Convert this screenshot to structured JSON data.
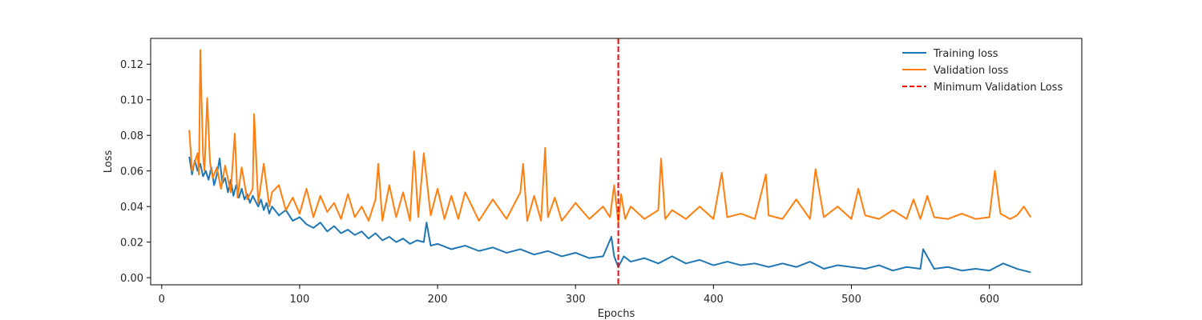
{
  "chart_data": {
    "type": "line",
    "title": "",
    "xlabel": "Epochs",
    "ylabel": "Loss",
    "xlim": [
      -8,
      667
    ],
    "ylim": [
      -0.004,
      0.1345
    ],
    "xticks": [
      0,
      100,
      200,
      300,
      400,
      500,
      600
    ],
    "yticks": [
      0.0,
      0.02,
      0.04,
      0.06,
      0.08,
      0.1,
      0.12
    ],
    "ytick_labels": [
      "0.00",
      "0.02",
      "0.04",
      "0.06",
      "0.08",
      "0.10",
      "0.12"
    ],
    "grid": false,
    "legend_position": "top-right",
    "series": [
      {
        "name": "Training loss",
        "color": "#1f77b4",
        "x": [
          20,
          22,
          24,
          26,
          28,
          30,
          32,
          34,
          36,
          38,
          40,
          42,
          44,
          46,
          48,
          50,
          52,
          54,
          56,
          58,
          60,
          62,
          64,
          66,
          68,
          70,
          72,
          74,
          76,
          78,
          80,
          85,
          90,
          95,
          100,
          105,
          110,
          115,
          120,
          125,
          130,
          135,
          140,
          145,
          150,
          155,
          160,
          165,
          170,
          175,
          180,
          185,
          190,
          192,
          195,
          200,
          210,
          220,
          230,
          240,
          250,
          260,
          270,
          280,
          290,
          300,
          310,
          320,
          326,
          328,
          331,
          335,
          340,
          350,
          360,
          370,
          380,
          390,
          400,
          410,
          420,
          430,
          440,
          450,
          460,
          470,
          480,
          490,
          500,
          510,
          520,
          530,
          540,
          550,
          552,
          560,
          570,
          580,
          590,
          600,
          610,
          620,
          630
        ],
        "y": [
          0.068,
          0.058,
          0.066,
          0.06,
          0.064,
          0.057,
          0.06,
          0.055,
          0.062,
          0.052,
          0.058,
          0.067,
          0.053,
          0.056,
          0.048,
          0.055,
          0.046,
          0.052,
          0.045,
          0.05,
          0.044,
          0.047,
          0.042,
          0.046,
          0.043,
          0.04,
          0.044,
          0.038,
          0.042,
          0.036,
          0.04,
          0.035,
          0.038,
          0.032,
          0.034,
          0.03,
          0.028,
          0.031,
          0.026,
          0.029,
          0.025,
          0.027,
          0.024,
          0.026,
          0.022,
          0.025,
          0.021,
          0.023,
          0.02,
          0.022,
          0.019,
          0.021,
          0.02,
          0.031,
          0.018,
          0.019,
          0.016,
          0.018,
          0.015,
          0.017,
          0.014,
          0.016,
          0.013,
          0.015,
          0.012,
          0.014,
          0.011,
          0.012,
          0.023,
          0.012,
          0.006,
          0.012,
          0.009,
          0.011,
          0.008,
          0.012,
          0.008,
          0.01,
          0.007,
          0.009,
          0.007,
          0.008,
          0.006,
          0.008,
          0.006,
          0.009,
          0.005,
          0.007,
          0.006,
          0.005,
          0.007,
          0.004,
          0.006,
          0.005,
          0.016,
          0.005,
          0.006,
          0.004,
          0.005,
          0.004,
          0.008,
          0.005,
          0.003
        ]
      },
      {
        "name": "Validation loss",
        "color": "#ff7f0e",
        "x": [
          20,
          22,
          24,
          26,
          27,
          28,
          30,
          31,
          33,
          35,
          37,
          40,
          43,
          46,
          50,
          53,
          55,
          58,
          62,
          66,
          67,
          70,
          74,
          78,
          80,
          85,
          90,
          95,
          100,
          105,
          110,
          115,
          120,
          125,
          130,
          135,
          140,
          145,
          150,
          155,
          157,
          160,
          165,
          170,
          175,
          180,
          183,
          186,
          190,
          195,
          200,
          205,
          210,
          215,
          220,
          230,
          240,
          250,
          260,
          262,
          265,
          270,
          275,
          278,
          280,
          285,
          290,
          300,
          310,
          320,
          325,
          328,
          331,
          333,
          336,
          340,
          350,
          360,
          362,
          365,
          370,
          380,
          390,
          400,
          406,
          410,
          420,
          430,
          438,
          440,
          450,
          460,
          470,
          474,
          480,
          490,
          500,
          505,
          510,
          520,
          530,
          540,
          545,
          550,
          555,
          560,
          570,
          580,
          590,
          600,
          604,
          608,
          615,
          620,
          625,
          630
        ],
        "y": [
          0.083,
          0.06,
          0.065,
          0.07,
          0.058,
          0.128,
          0.068,
          0.06,
          0.101,
          0.065,
          0.056,
          0.062,
          0.05,
          0.063,
          0.048,
          0.081,
          0.045,
          0.062,
          0.044,
          0.05,
          0.092,
          0.042,
          0.064,
          0.04,
          0.048,
          0.052,
          0.038,
          0.045,
          0.036,
          0.05,
          0.034,
          0.046,
          0.037,
          0.042,
          0.033,
          0.047,
          0.034,
          0.04,
          0.032,
          0.044,
          0.064,
          0.032,
          0.052,
          0.034,
          0.048,
          0.032,
          0.071,
          0.034,
          0.07,
          0.035,
          0.05,
          0.033,
          0.046,
          0.033,
          0.048,
          0.032,
          0.044,
          0.033,
          0.048,
          0.064,
          0.032,
          0.046,
          0.032,
          0.073,
          0.034,
          0.045,
          0.032,
          0.042,
          0.033,
          0.04,
          0.034,
          0.052,
          0.031,
          0.047,
          0.033,
          0.04,
          0.033,
          0.038,
          0.067,
          0.033,
          0.038,
          0.033,
          0.04,
          0.033,
          0.059,
          0.034,
          0.036,
          0.033,
          0.058,
          0.035,
          0.033,
          0.044,
          0.033,
          0.061,
          0.034,
          0.04,
          0.033,
          0.05,
          0.035,
          0.033,
          0.038,
          0.033,
          0.044,
          0.033,
          0.046,
          0.034,
          0.033,
          0.036,
          0.033,
          0.034,
          0.06,
          0.036,
          0.033,
          0.035,
          0.04,
          0.034
        ]
      }
    ],
    "vline": {
      "name": "Minimum Validation Loss",
      "x": 331,
      "color": "#ff0000",
      "style": "dashed"
    }
  }
}
